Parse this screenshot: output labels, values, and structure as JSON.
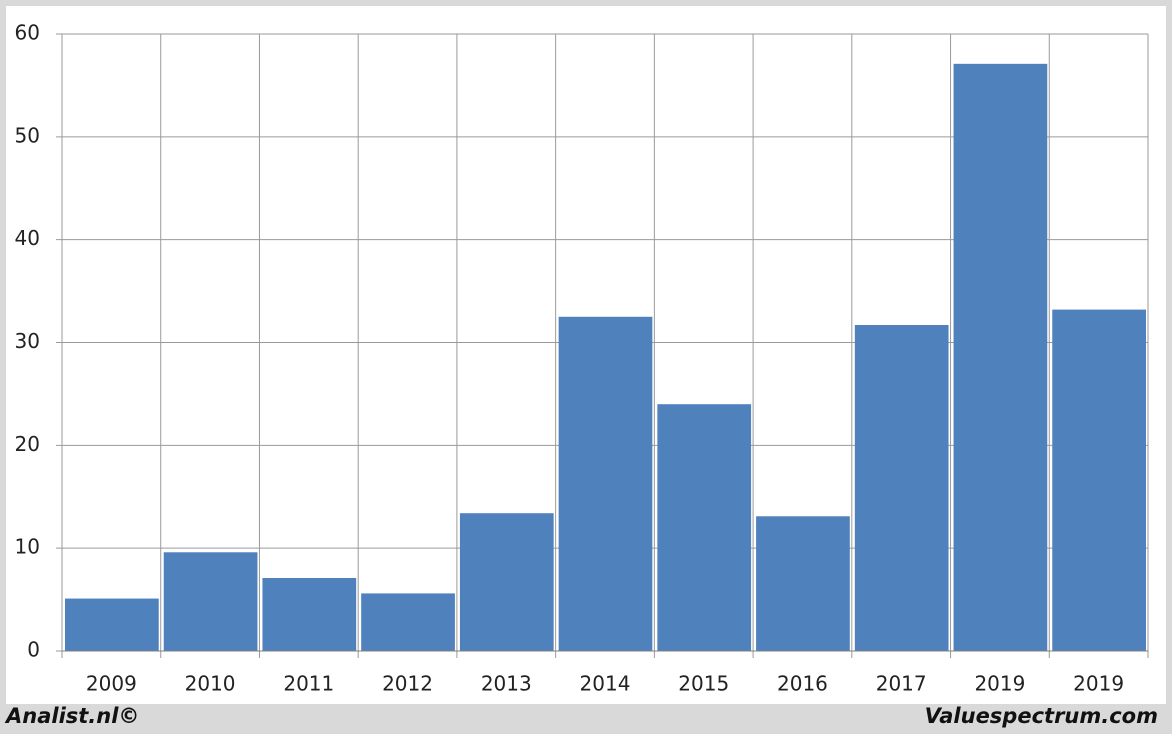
{
  "chart_data": {
    "type": "bar",
    "categories": [
      "2009",
      "2010",
      "2011",
      "2012",
      "2013",
      "2014",
      "2015",
      "2016",
      "2017",
      "2019",
      "2019"
    ],
    "values": [
      5.1,
      9.6,
      7.1,
      5.6,
      13.4,
      32.5,
      24.0,
      13.1,
      31.7,
      57.1,
      33.2
    ],
    "color": "#4f81bd",
    "ylim": [
      0,
      60
    ],
    "yticks": [
      0,
      10,
      20,
      30,
      40,
      50,
      60
    ],
    "grid": true,
    "footer_left": "Analist.nl©",
    "footer_right": "Valuespectrum.com"
  }
}
